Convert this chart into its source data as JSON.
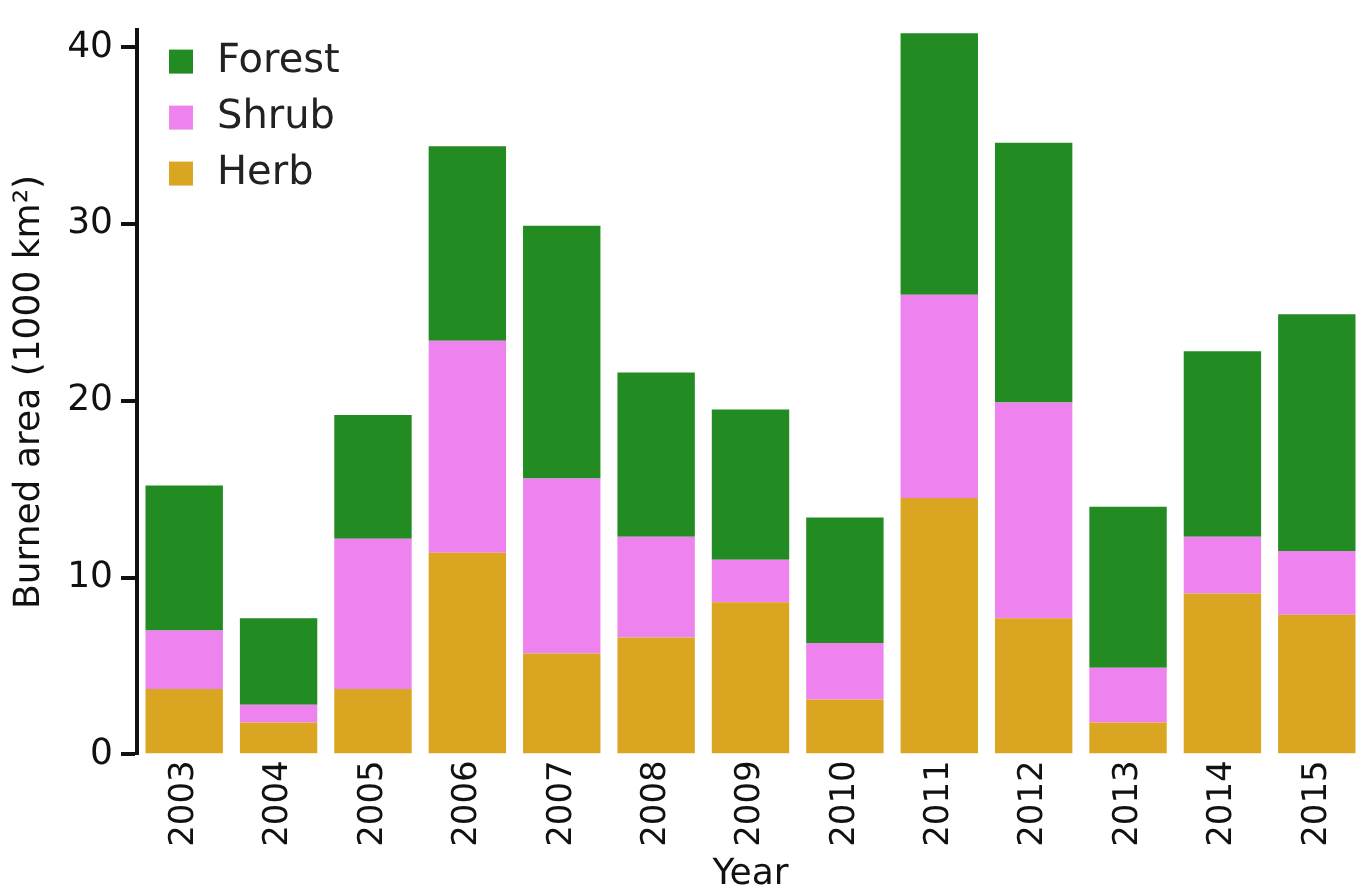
{
  "chart_data": {
    "type": "bar",
    "stacked": true,
    "xlabel": "Year",
    "ylabel": "Burned area (1000 km²)",
    "categories": [
      "2003",
      "2004",
      "2005",
      "2006",
      "2007",
      "2008",
      "2009",
      "2010",
      "2011",
      "2012",
      "2013",
      "2014",
      "2015"
    ],
    "series": [
      {
        "name": "Herb",
        "color": "#daa520",
        "values": [
          3.7,
          1.8,
          3.7,
          11.4,
          5.7,
          6.6,
          8.6,
          3.1,
          14.5,
          7.7,
          1.8,
          9.1,
          7.9
        ]
      },
      {
        "name": "Shrub",
        "color": "#ee82ee",
        "values": [
          3.3,
          1.0,
          8.5,
          12.0,
          9.9,
          5.7,
          2.4,
          3.2,
          11.5,
          12.2,
          3.1,
          3.2,
          3.6
        ]
      },
      {
        "name": "Forest",
        "color": "#228b22",
        "values": [
          8.2,
          4.9,
          7.0,
          11.0,
          14.3,
          9.3,
          8.5,
          7.1,
          14.8,
          14.7,
          9.1,
          10.5,
          13.4
        ]
      }
    ],
    "ylim": [
      0,
      41
    ],
    "yticks": [
      0,
      10,
      20,
      30,
      40
    ],
    "grid": false,
    "legend": "top left"
  }
}
